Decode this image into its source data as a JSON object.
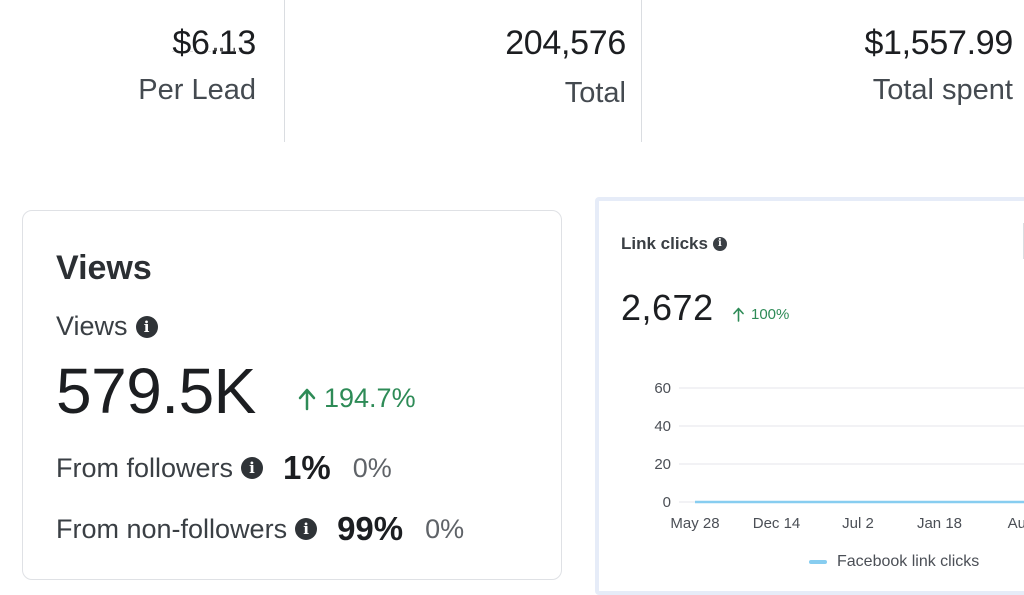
{
  "stats": [
    {
      "value": "$6.13",
      "label": "Per Lead"
    },
    {
      "value": "204,576",
      "label": "Total"
    },
    {
      "value": "$1,557.99",
      "label": "Total spent"
    }
  ],
  "views_card": {
    "title": "Views",
    "metric_label": "Views",
    "metric_value": "579.5K",
    "delta": "194.7%",
    "rows": [
      {
        "label": "From followers",
        "percent": "1%",
        "change": "0%"
      },
      {
        "label": "From non-followers",
        "percent": "99%",
        "change": "0%"
      }
    ]
  },
  "link_clicks_card": {
    "title": "Link clicks",
    "value": "2,672",
    "delta": "100%",
    "legend": "Facebook link clicks"
  },
  "colors": {
    "positive": "#2e8b57",
    "series": "#87cdf0"
  },
  "icons": [
    "info-icon",
    "arrow-up-icon"
  ],
  "chart_data": {
    "type": "line",
    "title": "Link clicks",
    "x": [
      "May 28",
      "Dec 14",
      "Jul 2",
      "Jan 18",
      "Aug"
    ],
    "ylim": [
      0,
      60
    ],
    "yticks": [
      0,
      20,
      40,
      60
    ],
    "grid": true,
    "legend": "bottom",
    "series": [
      {
        "name": "Facebook link clicks",
        "values": [
          0,
          0,
          0,
          0,
          0
        ]
      }
    ]
  }
}
